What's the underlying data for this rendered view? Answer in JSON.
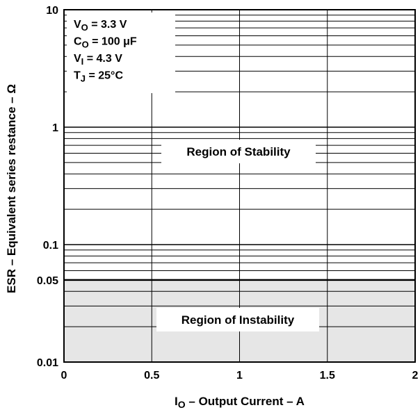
{
  "chart_data": {
    "type": "area",
    "xlabel_parts": {
      "main": "I",
      "sub": "O",
      "rest": " – Output Current – A"
    },
    "ylabel": "ESR – Equivalent series restance – Ω",
    "xlim": [
      0,
      2
    ],
    "ylim": [
      0.01,
      10
    ],
    "y_scale": "log",
    "x_ticks": [
      {
        "value": 0,
        "label": "0"
      },
      {
        "value": 0.5,
        "label": "0.5"
      },
      {
        "value": 1,
        "label": "1"
      },
      {
        "value": 1.5,
        "label": "1.5"
      },
      {
        "value": 2,
        "label": "2"
      }
    ],
    "y_ticks": [
      {
        "value": 0.01,
        "label": "0.01"
      },
      {
        "value": 0.05,
        "label": "0.05"
      },
      {
        "value": 0.1,
        "label": "0.1"
      },
      {
        "value": 1,
        "label": "1"
      },
      {
        "value": 10,
        "label": "10"
      }
    ],
    "grid": true,
    "boundary": {
      "esr": 0.05,
      "x": [
        0,
        2
      ]
    },
    "regions": [
      {
        "label": "Region of Stability",
        "esr_range": [
          0.05,
          10
        ],
        "fill": "#ffffff"
      },
      {
        "label": "Region of Instability",
        "esr_range": [
          0.01,
          0.05
        ],
        "fill": "#e6e6e6"
      }
    ],
    "conditions": [
      {
        "symbol": "V",
        "sub": "O",
        "value": " = 3.3 V"
      },
      {
        "symbol": "C",
        "sub": "O",
        "value": " = 100 μF"
      },
      {
        "symbol": "V",
        "sub": "I",
        "value": " = 4.3 V"
      },
      {
        "symbol": "T",
        "sub": "J",
        "value": " = 25°C"
      }
    ]
  }
}
